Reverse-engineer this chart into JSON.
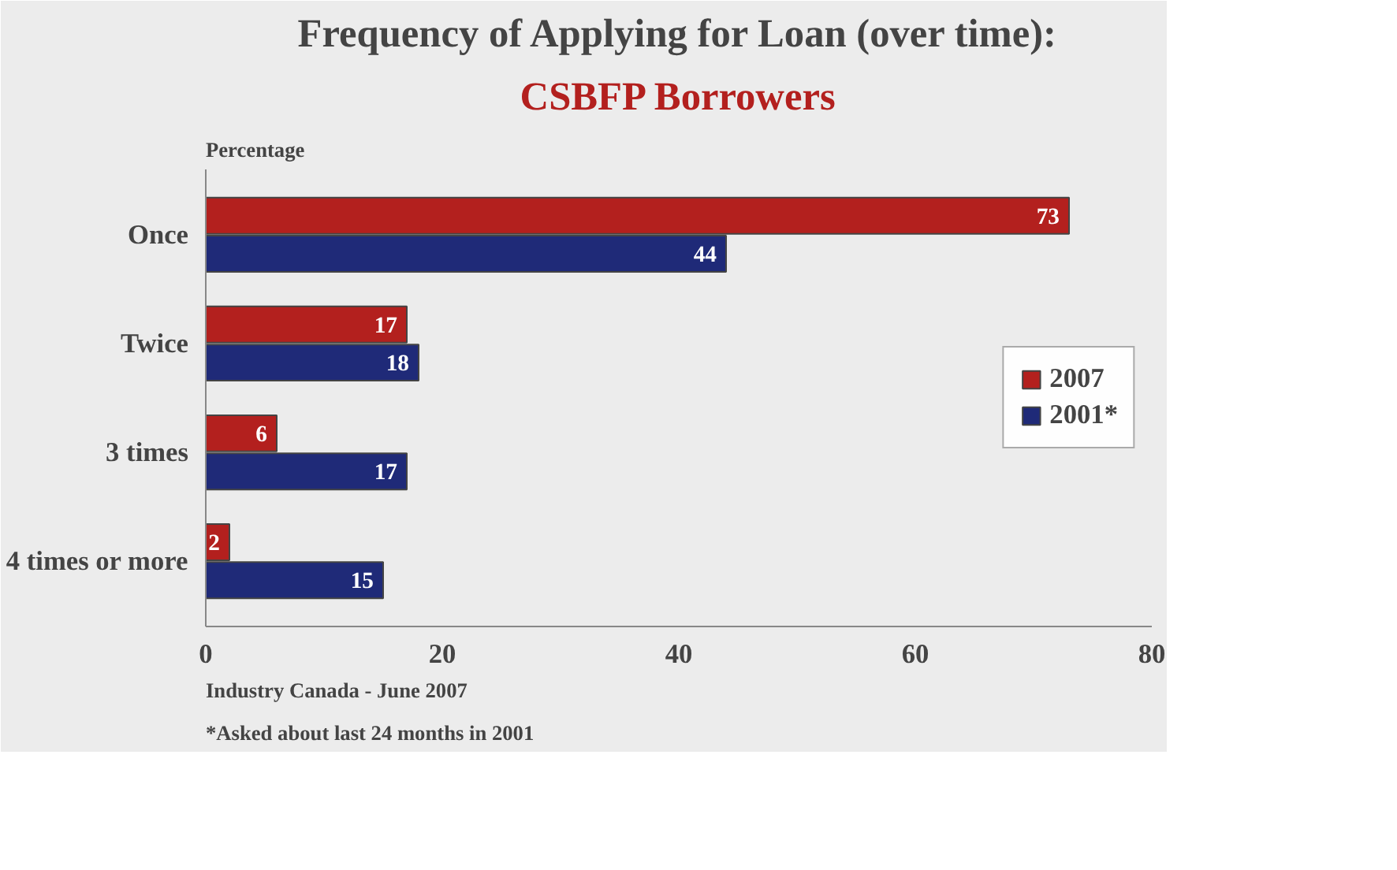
{
  "chart_data": {
    "type": "bar",
    "orientation": "horizontal",
    "title": "Frequency of Applying for Loan (over time):",
    "subtitle": "CSBFP Borrowers",
    "xlabel": "Percentage",
    "categories": [
      "Once",
      "Twice",
      "3 times",
      "4 times or more"
    ],
    "series": [
      {
        "name": "2007",
        "color": "#b3201e",
        "values": [
          73,
          17,
          6,
          2
        ]
      },
      {
        "name": "2001*",
        "color": "#1f2a78",
        "values": [
          44,
          18,
          17,
          15
        ]
      }
    ],
    "xlim": [
      0,
      80
    ],
    "xticks": [
      0,
      20,
      40,
      60,
      80
    ],
    "grid": false,
    "legend": "right",
    "data_labels": true,
    "annotations": [
      "*Asked about last 24 months in 2001",
      "Industry Canada - June 2007"
    ]
  }
}
